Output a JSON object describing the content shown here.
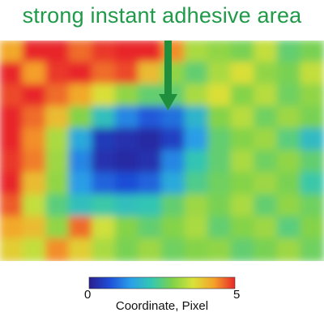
{
  "chart_data": {
    "type": "heatmap",
    "title": "strong instant adhesive area",
    "annotation": "arrow pointing down into the dark blue low-value region",
    "colorbar": {
      "label": "Coordinate,  Pixel",
      "min": 0,
      "max": 5,
      "min_label": "0",
      "max_label": "5",
      "colormap": [
        "#2a1f8f",
        "#1f4fd8",
        "#2aa0e8",
        "#34c7b0",
        "#7fd24a",
        "#d9e23a",
        "#f5a12a",
        "#e8282a"
      ]
    },
    "grid": {
      "rows": 10,
      "cols": 14,
      "values": [
        [
          4.2,
          5.0,
          5.0,
          4.6,
          4.9,
          5.0,
          5.0,
          4.4,
          3.2,
          3.0,
          2.8,
          3.4,
          2.6,
          2.8
        ],
        [
          5.0,
          4.3,
          4.9,
          5.0,
          4.6,
          4.8,
          4.0,
          3.0,
          2.6,
          3.2,
          3.6,
          3.0,
          2.8,
          3.4
        ],
        [
          4.8,
          5.0,
          4.6,
          4.2,
          3.6,
          3.0,
          2.6,
          2.6,
          3.2,
          3.6,
          2.9,
          3.3,
          2.7,
          3.0
        ],
        [
          5.0,
          4.6,
          4.0,
          2.9,
          2.0,
          1.2,
          0.8,
          1.0,
          1.8,
          2.9,
          3.3,
          2.7,
          3.1,
          2.8
        ],
        [
          5.0,
          4.4,
          3.2,
          1.6,
          0.4,
          0.3,
          0.2,
          0.5,
          1.4,
          2.6,
          2.9,
          3.1,
          2.5,
          1.9
        ],
        [
          4.9,
          4.5,
          3.1,
          1.2,
          0.3,
          0.2,
          0.3,
          1.2,
          2.1,
          2.6,
          3.2,
          2.7,
          3.0,
          2.6
        ],
        [
          5.0,
          4.0,
          3.0,
          1.4,
          0.9,
          0.7,
          0.9,
          1.6,
          2.4,
          2.7,
          2.9,
          3.1,
          2.8,
          2.2
        ],
        [
          4.7,
          3.4,
          2.5,
          2.0,
          2.2,
          2.0,
          2.1,
          2.6,
          3.1,
          2.8,
          3.2,
          2.6,
          3.0,
          2.7
        ],
        [
          4.2,
          4.0,
          3.0,
          4.6,
          3.5,
          2.9,
          2.6,
          2.9,
          3.2,
          2.6,
          2.9,
          3.1,
          2.5,
          2.9
        ],
        [
          3.8,
          3.4,
          4.4,
          3.8,
          3.2,
          2.8,
          3.1,
          2.7,
          2.9,
          3.0,
          2.6,
          2.8,
          3.1,
          2.7
        ]
      ]
    }
  }
}
